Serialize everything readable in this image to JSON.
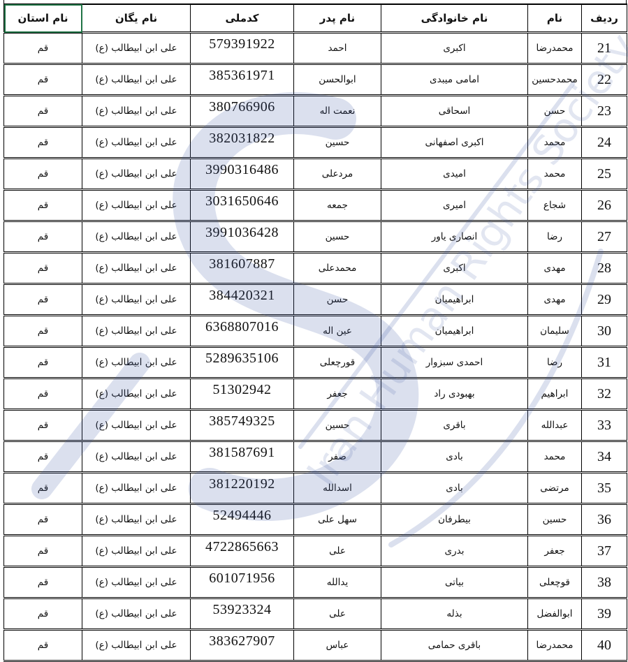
{
  "watermark": "Iran Human Rights Society",
  "colors": {
    "selection": "#217346",
    "watermark": "#3a55a0"
  },
  "headers": [
    "ردیف",
    "نام",
    "نام خانوادگی",
    "نام پدر",
    "کدملی",
    "نام یگان",
    "نام استان"
  ],
  "rows": [
    [
      "21",
      "محمدرضا",
      "اکبری",
      "احمد",
      "579391922",
      "علی ابن ابیطالب (ع)",
      "قم"
    ],
    [
      "22",
      "محمدحسین",
      "امامی میبدی",
      "ابوالحسن",
      "385361971",
      "علی ابن ابیطالب (ع)",
      "قم"
    ],
    [
      "23",
      "حسن",
      "اسحاقی",
      "نعمت اله",
      "380766906",
      "علی ابن ابیطالب (ع)",
      "قم"
    ],
    [
      "24",
      "محمد",
      "اکبری اصفهانی",
      "حسین",
      "382031822",
      "علی ابن ابیطالب (ع)",
      "قم"
    ],
    [
      "25",
      "محمد",
      "امیدی",
      "مردعلی",
      "3990316486",
      "علی ابن ابیطالب (ع)",
      "قم"
    ],
    [
      "26",
      "شجاع",
      "امیری",
      "جمعه",
      "3031650646",
      "علی ابن ابیطالب (ع)",
      "قم"
    ],
    [
      "27",
      "رضا",
      "انصاری یاور",
      "حسین",
      "3991036428",
      "علی ابن ابیطالب (ع)",
      "قم"
    ],
    [
      "28",
      "مهدی",
      "اکبری",
      "محمدعلی",
      "381607887",
      "علی ابن ابیطالب (ع)",
      "قم"
    ],
    [
      "29",
      "مهدی",
      "ابراهیمیان",
      "حسن",
      "384420321",
      "علی ابن ابیطالب (ع)",
      "قم"
    ],
    [
      "30",
      "سلیمان",
      "ابراهیمیان",
      "عین اله",
      "6368807016",
      "علی ابن ابیطالب (ع)",
      "قم"
    ],
    [
      "31",
      "رضا",
      "احمدی سبزوار",
      "قورچعلی",
      "5289635106",
      "علی ابن ابیطالب (ع)",
      "قم"
    ],
    [
      "32",
      "ابراهیم",
      "بهبودی راد",
      "جعفر",
      "51302942",
      "علی ابن ابیطالب (ع)",
      "قم"
    ],
    [
      "33",
      "عبدالله",
      "باقری",
      "حسین",
      "385749325",
      "علی ابن ابیطالب (ع)",
      "قم"
    ],
    [
      "34",
      "محمد",
      "بادی",
      "صفر",
      "381587691",
      "علی ابن ابیطالب (ع)",
      "قم"
    ],
    [
      "35",
      "مرتضی",
      "بادی",
      "اسدالله",
      "381220192",
      "علی ابن ابیطالب (ع)",
      "قم"
    ],
    [
      "36",
      "حسین",
      "بیطرفان",
      "سهل علی",
      "52494446",
      "علی ابن ابیطالب (ع)",
      "قم"
    ],
    [
      "37",
      "جعفر",
      "بدری",
      "علی",
      "4722865663",
      "علی ابن ابیطالب (ع)",
      "قم"
    ],
    [
      "38",
      "قوچعلی",
      "بیاتی",
      "یدالله",
      "601071956",
      "علی ابن ابیطالب (ع)",
      "قم"
    ],
    [
      "39",
      "ابوالفضل",
      "بذله",
      "علی",
      "53923324",
      "علی ابن ابیطالب (ع)",
      "قم"
    ],
    [
      "40",
      "محمدرضا",
      "باقری حمامی",
      "عباس",
      "383627907",
      "علی ابن ابیطالب (ع)",
      "قم"
    ]
  ]
}
